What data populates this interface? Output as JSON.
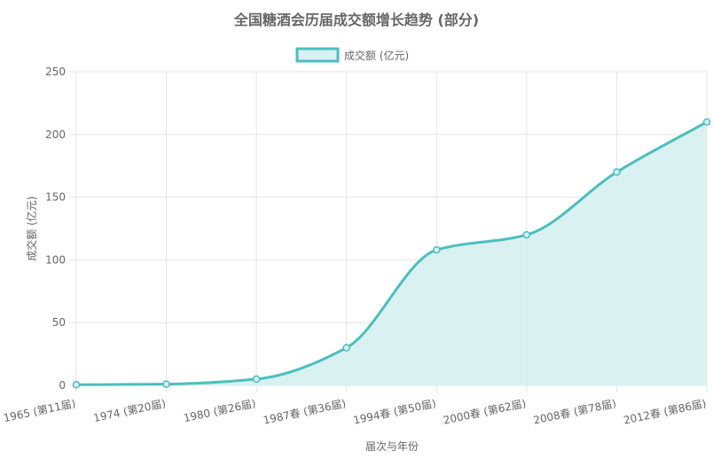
{
  "chart_data": {
    "type": "area",
    "title": "全国糖酒会历届成交额增长趋势 (部分)",
    "xlabel": "届次与年份",
    "ylabel": "成交额 (亿元)",
    "categories": [
      "1965 (第11届)",
      "1974 (第20届)",
      "1980 (第26届)",
      "1987春 (第36届)",
      "1994春 (第50届)",
      "2000春 (第62届)",
      "2008春 (第78届)",
      "2012春 (第86届)"
    ],
    "series": [
      {
        "name": "成交额 (亿元)",
        "values": [
          0.5,
          1,
          5,
          30,
          108,
          120,
          170,
          210
        ]
      }
    ],
    "ylim": [
      0,
      250
    ],
    "yticks": [
      0,
      50,
      100,
      150,
      200,
      250
    ],
    "grid": true,
    "legend": "top-center",
    "colors": {
      "line": "#4bbfbf",
      "fill": "#d8f0f0",
      "grid": "#e5e5e5",
      "text": "#666666"
    }
  }
}
